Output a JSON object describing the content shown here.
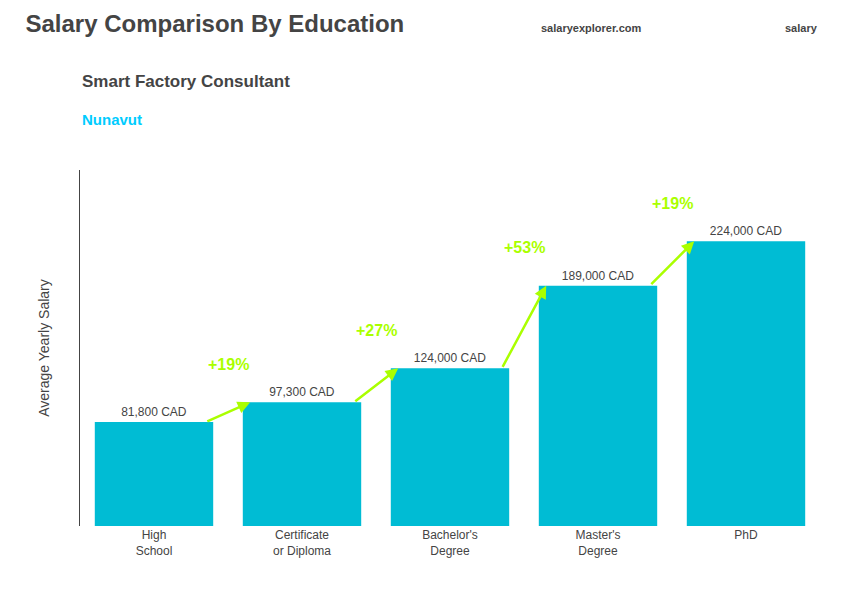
{
  "chart_data": {
    "type": "bar",
    "title": "Salary Comparison By Education",
    "subtitle": "Smart Factory Consultant",
    "ylabel": "Average Yearly Salary",
    "categories": [
      "High\nSchool",
      "Certificate\nor Diploma",
      "Bachelor's\nDegree",
      "Master's\nDegree",
      "PhD"
    ],
    "values": [
      81800,
      97300,
      124000,
      189000,
      224000
    ],
    "value_labels": [
      "81,800 CAD",
      "97,300 CAD",
      "124,000 CAD",
      "189,000 CAD",
      "224,000 CAD"
    ],
    "data_labels": true,
    "color": "#00bcd4",
    "ylim": [
      0,
      280000
    ],
    "yticks": [],
    "tick_labels": "x",
    "grid": false,
    "annotations": [
      {
        "text": "+19%",
        "between": [
          0,
          1
        ],
        "color": "#aaff00"
      },
      {
        "text": "+27%",
        "between": [
          1,
          2
        ],
        "color": "#aaff00"
      },
      {
        "text": "+53%",
        "between": [
          2,
          3
        ],
        "color": "#aaff00"
      },
      {
        "text": "+19%",
        "between": [
          3,
          4
        ],
        "color": "#aaff00"
      },
      {
        "text": "Nunavut",
        "color": "#00ccff"
      },
      {
        "text": "salaryexplorer.com"
      },
      {
        "text": "salary"
      }
    ]
  }
}
